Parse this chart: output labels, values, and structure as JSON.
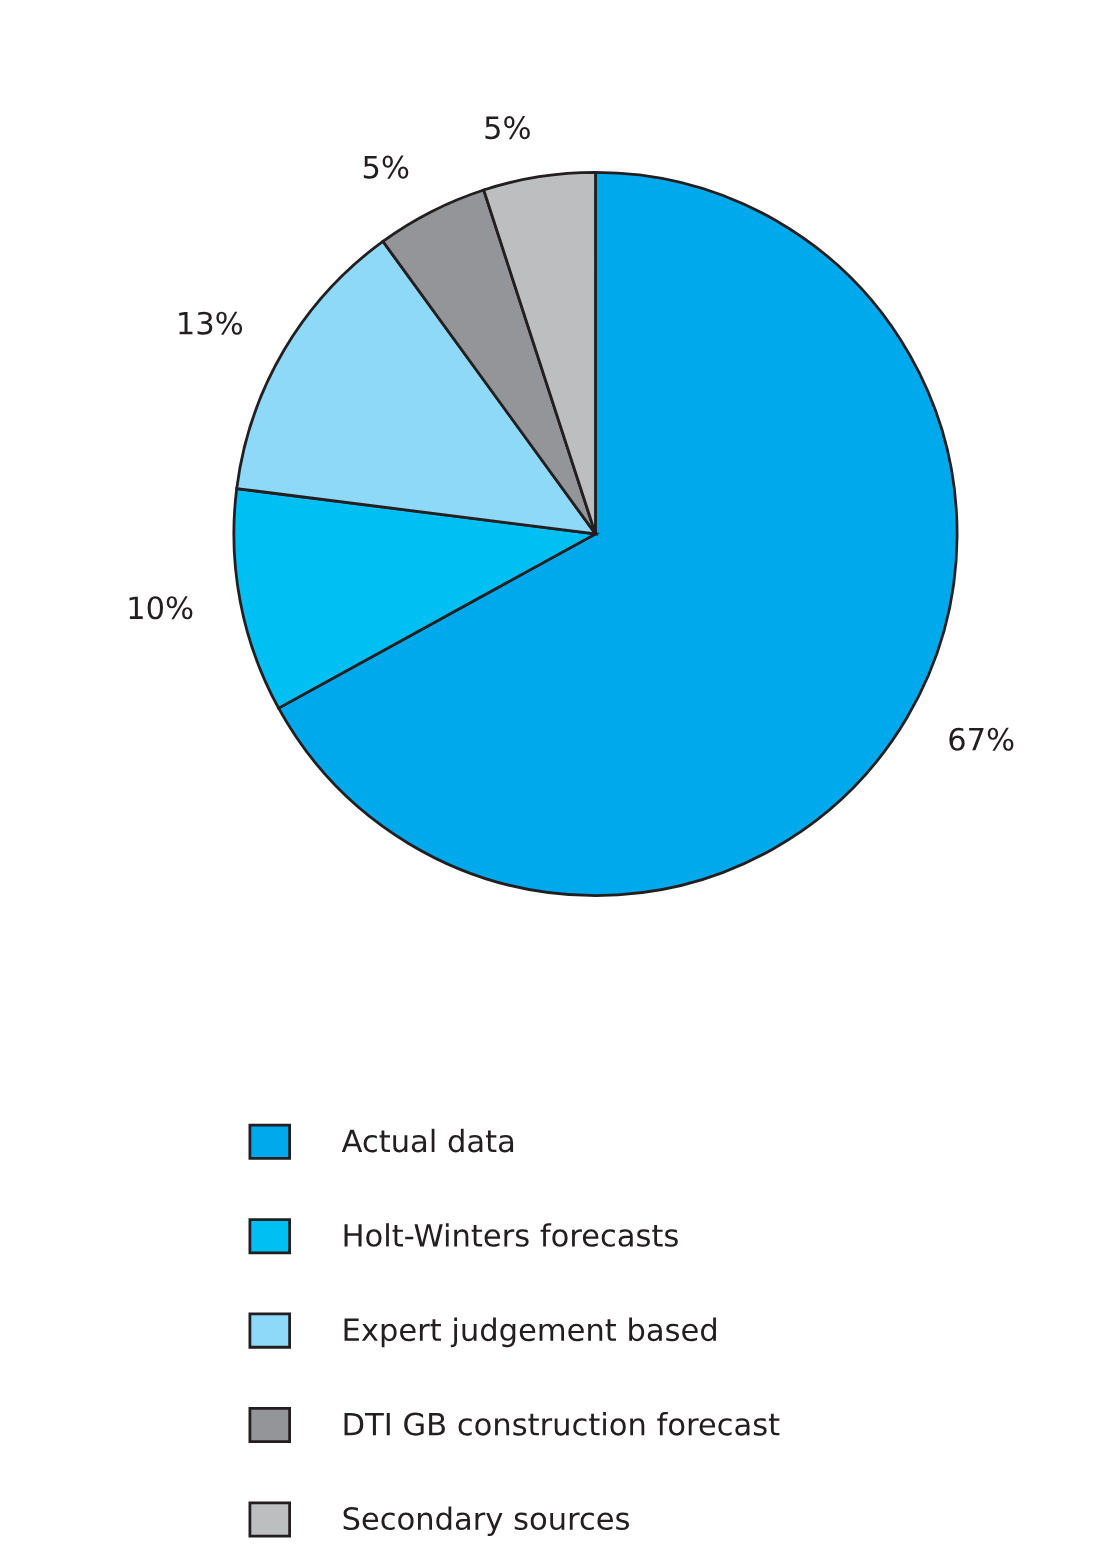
{
  "chart_data": {
    "type": "pie",
    "categories": [
      "Actual data",
      "Holt-Winters forecasts",
      "Expert judgement based",
      "DTI GB construction forecast",
      "Secondary sources"
    ],
    "values": [
      67,
      10,
      13,
      5,
      5
    ],
    "value_labels": [
      "67%",
      "10%",
      "13%",
      "5%",
      "5%"
    ],
    "colors": [
      "#00a9ec",
      "#00c0f3",
      "#8fd9f8",
      "#939598",
      "#bcbec0"
    ],
    "legend": "bottom"
  }
}
